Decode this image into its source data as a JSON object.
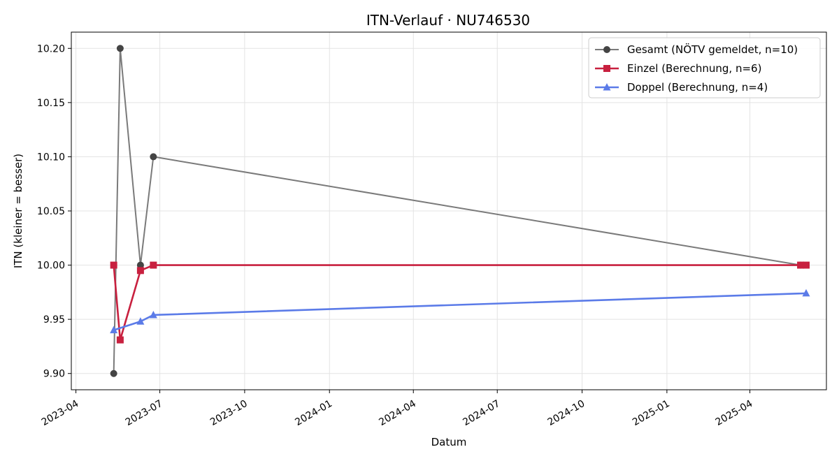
{
  "chart_data": {
    "type": "line",
    "title": "ITN-Verlauf · NU746530",
    "xlabel": "Datum",
    "ylabel": "ITN  (kleiner = besser)",
    "xlim": [
      "2023-03-27",
      "2025-06-23"
    ],
    "ylim": [
      9.885,
      10.215
    ],
    "x_ticks": [
      "2023-04-01",
      "2023-07-01",
      "2023-10-01",
      "2024-01-01",
      "2024-04-01",
      "2024-07-01",
      "2024-10-01",
      "2025-01-01",
      "2025-04-01"
    ],
    "x_tick_labels": [
      "2023-04",
      "2023-07",
      "2023-10",
      "2024-01",
      "2024-04",
      "2024-07",
      "2024-10",
      "2025-01",
      "2025-04"
    ],
    "y_ticks": [
      9.9,
      9.95,
      10.0,
      10.05,
      10.1,
      10.15,
      10.2
    ],
    "y_tick_labels": [
      "9.90",
      "9.95",
      "10.00",
      "10.05",
      "10.10",
      "10.15",
      "10.20"
    ],
    "grid": true,
    "legend_position": "top-right",
    "series": [
      {
        "name": "Gesamt (NÖTV gemeldet, n=10)",
        "color": "#7a7a7a",
        "marker": "circle",
        "points": [
          {
            "x": "2023-05-12",
            "y": 9.9
          },
          {
            "x": "2023-05-19",
            "y": 10.2
          },
          {
            "x": "2023-06-10",
            "y": 10.0
          },
          {
            "x": "2023-06-24",
            "y": 10.1
          },
          {
            "x": "2025-05-26",
            "y": 10.0
          }
        ]
      },
      {
        "name": "Einzel (Berechnung, n=6)",
        "color": "#c8203f",
        "marker": "square",
        "points": [
          {
            "x": "2023-05-12",
            "y": 10.0
          },
          {
            "x": "2023-05-19",
            "y": 9.931
          },
          {
            "x": "2023-06-10",
            "y": 9.995
          },
          {
            "x": "2023-06-24",
            "y": 10.0
          },
          {
            "x": "2025-05-26",
            "y": 10.0
          },
          {
            "x": "2025-06-01",
            "y": 10.0
          }
        ]
      },
      {
        "name": "Doppel (Berechnung, n=4)",
        "color": "#5b7be8",
        "marker": "triangle",
        "points": [
          {
            "x": "2023-05-12",
            "y": 9.94
          },
          {
            "x": "2023-06-10",
            "y": 9.948
          },
          {
            "x": "2023-06-24",
            "y": 9.954
          },
          {
            "x": "2025-06-01",
            "y": 9.974
          }
        ]
      }
    ]
  }
}
